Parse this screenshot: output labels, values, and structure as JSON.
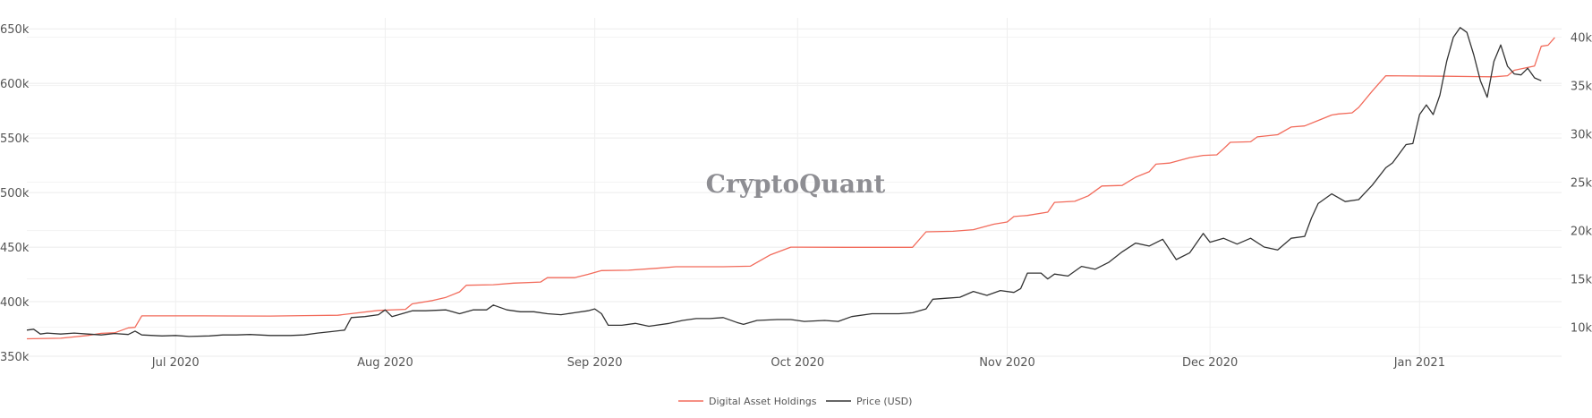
{
  "watermark": "CryptoQuant",
  "chart_data": {
    "type": "line",
    "title": "",
    "xlabel": "",
    "grid": true,
    "legend_position": "bottom-center",
    "x_ticks": [
      "Jul 2020",
      "Aug 2020",
      "Sep 2020",
      "Oct 2020",
      "Nov 2020",
      "Dec 2020",
      "Jan 2021"
    ],
    "x_tick_dates": [
      "2020-07-01",
      "2020-08-01",
      "2020-09-01",
      "2020-10-01",
      "2020-11-01",
      "2020-12-01",
      "2021-01-01"
    ],
    "x_range": [
      "2020-06-09",
      "2021-01-22"
    ],
    "y_left": {
      "label": "",
      "range": [
        350000,
        660000
      ],
      "ticks": [
        350000,
        400000,
        450000,
        500000,
        550000,
        600000,
        650000
      ],
      "tick_labels": [
        "350k",
        "400k",
        "450k",
        "500k",
        "550k",
        "600k",
        "650k"
      ]
    },
    "y_right": {
      "label": "",
      "range": [
        7000,
        42000
      ],
      "ticks": [
        10000,
        15000,
        20000,
        25000,
        30000,
        35000,
        40000
      ],
      "tick_labels": [
        "10k",
        "15k",
        "20k",
        "25k",
        "30k",
        "35k",
        "40k"
      ]
    },
    "series": [
      {
        "name": "Digital Asset Holdings",
        "color": "#f26b5b",
        "axis": "left",
        "points": [
          [
            "2020-06-09",
            366000
          ],
          [
            "2020-06-14",
            366500
          ],
          [
            "2020-06-18",
            369000
          ],
          [
            "2020-06-20",
            371000
          ],
          [
            "2020-06-22",
            371500
          ],
          [
            "2020-06-24",
            376000
          ],
          [
            "2020-06-25",
            376500
          ],
          [
            "2020-06-26",
            387000
          ],
          [
            "2020-07-05",
            387000
          ],
          [
            "2020-07-15",
            386800
          ],
          [
            "2020-07-20",
            387200
          ],
          [
            "2020-07-25",
            387600
          ],
          [
            "2020-07-27",
            389000
          ],
          [
            "2020-07-31",
            392000
          ],
          [
            "2020-08-04",
            393000
          ],
          [
            "2020-08-05",
            398000
          ],
          [
            "2020-08-08",
            401000
          ],
          [
            "2020-08-10",
            404000
          ],
          [
            "2020-08-12",
            409000
          ],
          [
            "2020-08-13",
            415000
          ],
          [
            "2020-08-17",
            415500
          ],
          [
            "2020-08-20",
            417000
          ],
          [
            "2020-08-24",
            418000
          ],
          [
            "2020-08-25",
            422000
          ],
          [
            "2020-08-29",
            422000
          ],
          [
            "2020-08-31",
            425000
          ],
          [
            "2020-09-02",
            428500
          ],
          [
            "2020-09-06",
            428800
          ],
          [
            "2020-09-10",
            430500
          ],
          [
            "2020-09-13",
            432000
          ],
          [
            "2020-09-20",
            432000
          ],
          [
            "2020-09-24",
            432500
          ],
          [
            "2020-09-27",
            443000
          ],
          [
            "2020-09-30",
            450000
          ],
          [
            "2020-10-08",
            449800
          ],
          [
            "2020-10-15",
            449800
          ],
          [
            "2020-10-18",
            449800
          ],
          [
            "2020-10-20",
            464000
          ],
          [
            "2020-10-24",
            464500
          ],
          [
            "2020-10-27",
            466000
          ],
          [
            "2020-10-30",
            471000
          ],
          [
            "2020-11-01",
            473000
          ],
          [
            "2020-11-02",
            478000
          ],
          [
            "2020-11-04",
            479000
          ],
          [
            "2020-11-07",
            482000
          ],
          [
            "2020-11-08",
            491000
          ],
          [
            "2020-11-11",
            492000
          ],
          [
            "2020-11-13",
            497000
          ],
          [
            "2020-11-15",
            506000
          ],
          [
            "2020-11-18",
            506500
          ],
          [
            "2020-11-20",
            514000
          ],
          [
            "2020-11-22",
            519000
          ],
          [
            "2020-11-23",
            526000
          ],
          [
            "2020-11-25",
            527000
          ],
          [
            "2020-11-28",
            532000
          ],
          [
            "2020-11-30",
            534000
          ],
          [
            "2020-12-02",
            534500
          ],
          [
            "2020-12-03",
            540000
          ],
          [
            "2020-12-04",
            546000
          ],
          [
            "2020-12-07",
            546500
          ],
          [
            "2020-12-08",
            551000
          ],
          [
            "2020-12-11",
            553000
          ],
          [
            "2020-12-13",
            560000
          ],
          [
            "2020-12-15",
            561000
          ],
          [
            "2020-12-17",
            566000
          ],
          [
            "2020-12-19",
            571000
          ],
          [
            "2020-12-20",
            572000
          ],
          [
            "2020-12-22",
            573000
          ],
          [
            "2020-12-23",
            578000
          ],
          [
            "2020-12-25",
            593000
          ],
          [
            "2020-12-27",
            607000
          ],
          [
            "2021-01-05",
            606500
          ],
          [
            "2021-01-12",
            606000
          ],
          [
            "2021-01-14",
            607000
          ],
          [
            "2021-01-15",
            612000
          ],
          [
            "2021-01-18",
            616000
          ],
          [
            "2021-01-19",
            634000
          ],
          [
            "2021-01-20",
            635000
          ],
          [
            "2021-01-21",
            642000
          ]
        ]
      },
      {
        "name": "Price (USD)",
        "color": "#333333",
        "axis": "right",
        "points": [
          [
            "2020-06-09",
            9700
          ],
          [
            "2020-06-10",
            9800
          ],
          [
            "2020-06-11",
            9300
          ],
          [
            "2020-06-12",
            9400
          ],
          [
            "2020-06-14",
            9300
          ],
          [
            "2020-06-16",
            9400
          ],
          [
            "2020-06-18",
            9300
          ],
          [
            "2020-06-20",
            9200
          ],
          [
            "2020-06-22",
            9350
          ],
          [
            "2020-06-24",
            9250
          ],
          [
            "2020-06-25",
            9600
          ],
          [
            "2020-06-26",
            9200
          ],
          [
            "2020-06-29",
            9100
          ],
          [
            "2020-07-01",
            9150
          ],
          [
            "2020-07-03",
            9050
          ],
          [
            "2020-07-06",
            9100
          ],
          [
            "2020-07-08",
            9200
          ],
          [
            "2020-07-10",
            9200
          ],
          [
            "2020-07-12",
            9250
          ],
          [
            "2020-07-15",
            9150
          ],
          [
            "2020-07-18",
            9150
          ],
          [
            "2020-07-20",
            9200
          ],
          [
            "2020-07-22",
            9400
          ],
          [
            "2020-07-24",
            9550
          ],
          [
            "2020-07-26",
            9700
          ],
          [
            "2020-07-27",
            11000
          ],
          [
            "2020-07-29",
            11100
          ],
          [
            "2020-07-31",
            11300
          ],
          [
            "2020-08-01",
            11800
          ],
          [
            "2020-08-02",
            11100
          ],
          [
            "2020-08-05",
            11700
          ],
          [
            "2020-08-07",
            11700
          ],
          [
            "2020-08-10",
            11800
          ],
          [
            "2020-08-12",
            11400
          ],
          [
            "2020-08-14",
            11800
          ],
          [
            "2020-08-16",
            11800
          ],
          [
            "2020-08-17",
            12300
          ],
          [
            "2020-08-19",
            11800
          ],
          [
            "2020-08-21",
            11600
          ],
          [
            "2020-08-23",
            11600
          ],
          [
            "2020-08-25",
            11400
          ],
          [
            "2020-08-27",
            11300
          ],
          [
            "2020-08-29",
            11500
          ],
          [
            "2020-08-31",
            11700
          ],
          [
            "2020-09-01",
            11900
          ],
          [
            "2020-09-02",
            11400
          ],
          [
            "2020-09-03",
            10200
          ],
          [
            "2020-09-05",
            10200
          ],
          [
            "2020-09-07",
            10400
          ],
          [
            "2020-09-09",
            10100
          ],
          [
            "2020-09-12",
            10400
          ],
          [
            "2020-09-14",
            10700
          ],
          [
            "2020-09-16",
            10900
          ],
          [
            "2020-09-18",
            10900
          ],
          [
            "2020-09-20",
            11000
          ],
          [
            "2020-09-22",
            10500
          ],
          [
            "2020-09-23",
            10300
          ],
          [
            "2020-09-25",
            10700
          ],
          [
            "2020-09-28",
            10800
          ],
          [
            "2020-09-30",
            10800
          ],
          [
            "2020-10-02",
            10600
          ],
          [
            "2020-10-05",
            10700
          ],
          [
            "2020-10-07",
            10600
          ],
          [
            "2020-10-09",
            11100
          ],
          [
            "2020-10-12",
            11400
          ],
          [
            "2020-10-14",
            11400
          ],
          [
            "2020-10-16",
            11400
          ],
          [
            "2020-10-18",
            11500
          ],
          [
            "2020-10-20",
            11900
          ],
          [
            "2020-10-21",
            12900
          ],
          [
            "2020-10-23",
            13000
          ],
          [
            "2020-10-25",
            13100
          ],
          [
            "2020-10-27",
            13700
          ],
          [
            "2020-10-29",
            13300
          ],
          [
            "2020-10-31",
            13800
          ],
          [
            "2020-11-02",
            13600
          ],
          [
            "2020-11-03",
            14000
          ],
          [
            "2020-11-04",
            15600
          ],
          [
            "2020-11-06",
            15600
          ],
          [
            "2020-11-07",
            15000
          ],
          [
            "2020-11-08",
            15500
          ],
          [
            "2020-11-10",
            15300
          ],
          [
            "2020-11-12",
            16300
          ],
          [
            "2020-11-14",
            16000
          ],
          [
            "2020-11-16",
            16700
          ],
          [
            "2020-11-18",
            17800
          ],
          [
            "2020-11-20",
            18700
          ],
          [
            "2020-11-22",
            18400
          ],
          [
            "2020-11-24",
            19100
          ],
          [
            "2020-11-26",
            17000
          ],
          [
            "2020-11-28",
            17700
          ],
          [
            "2020-11-30",
            19700
          ],
          [
            "2020-12-01",
            18800
          ],
          [
            "2020-12-03",
            19200
          ],
          [
            "2020-12-05",
            18600
          ],
          [
            "2020-12-07",
            19200
          ],
          [
            "2020-12-09",
            18300
          ],
          [
            "2020-12-11",
            18000
          ],
          [
            "2020-12-13",
            19200
          ],
          [
            "2020-12-15",
            19400
          ],
          [
            "2020-12-16",
            21300
          ],
          [
            "2020-12-17",
            22800
          ],
          [
            "2020-12-19",
            23800
          ],
          [
            "2020-12-21",
            23000
          ],
          [
            "2020-12-23",
            23200
          ],
          [
            "2020-12-25",
            24700
          ],
          [
            "2020-12-27",
            26500
          ],
          [
            "2020-12-28",
            27000
          ],
          [
            "2020-12-30",
            28900
          ],
          [
            "2020-12-31",
            29000
          ],
          [
            "2021-01-01",
            32000
          ],
          [
            "2021-01-02",
            33000
          ],
          [
            "2021-01-03",
            32000
          ],
          [
            "2021-01-04",
            34000
          ],
          [
            "2021-01-05",
            37500
          ],
          [
            "2021-01-06",
            40000
          ],
          [
            "2021-01-07",
            41000
          ],
          [
            "2021-01-08",
            40500
          ],
          [
            "2021-01-09",
            38200
          ],
          [
            "2021-01-10",
            35500
          ],
          [
            "2021-01-11",
            33800
          ],
          [
            "2021-01-12",
            37500
          ],
          [
            "2021-01-13",
            39200
          ],
          [
            "2021-01-14",
            37000
          ],
          [
            "2021-01-15",
            36200
          ],
          [
            "2021-01-16",
            36100
          ],
          [
            "2021-01-17",
            36800
          ],
          [
            "2021-01-18",
            35800
          ],
          [
            "2021-01-19",
            35500
          ]
        ]
      }
    ]
  }
}
